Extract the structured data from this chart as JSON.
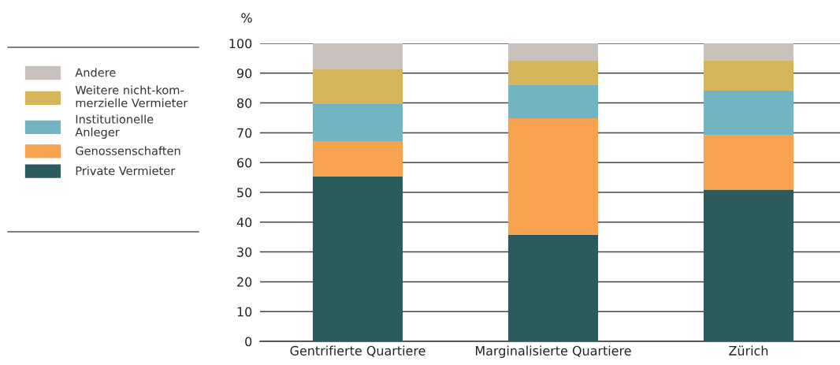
{
  "chart_data": {
    "type": "bar",
    "stacked": true,
    "ylabel": "%",
    "categories": [
      "Gentrifierte Quartiere",
      "Marginalisierte Quartiere",
      "Zürich"
    ],
    "series": [
      {
        "name": "Private Vermieter",
        "color": "#2c5b5f",
        "values": [
          55.3,
          35.8,
          50.9
        ]
      },
      {
        "name": "Genossenschaften",
        "color": "#f6a24e",
        "values": [
          11.9,
          39.1,
          18.2
        ]
      },
      {
        "name": "Institutionelle\nAnleger",
        "color": "#73b4c4",
        "values": [
          12.4,
          11.3,
          15.0
        ]
      },
      {
        "name": "Weitere nicht-kom-\nmerzielle Vermieter",
        "color": "#d5b65b",
        "values": [
          11.7,
          8.0,
          10.3
        ]
      },
      {
        "name": "Andere",
        "color": "#c9c1bd",
        "values": [
          8.7,
          5.8,
          5.6
        ]
      }
    ],
    "ylim": [
      0,
      100
    ],
    "yticks": [
      0,
      10,
      20,
      30,
      40,
      50,
      60,
      70,
      80,
      90,
      100
    ],
    "grid": "y",
    "legend": "left"
  }
}
